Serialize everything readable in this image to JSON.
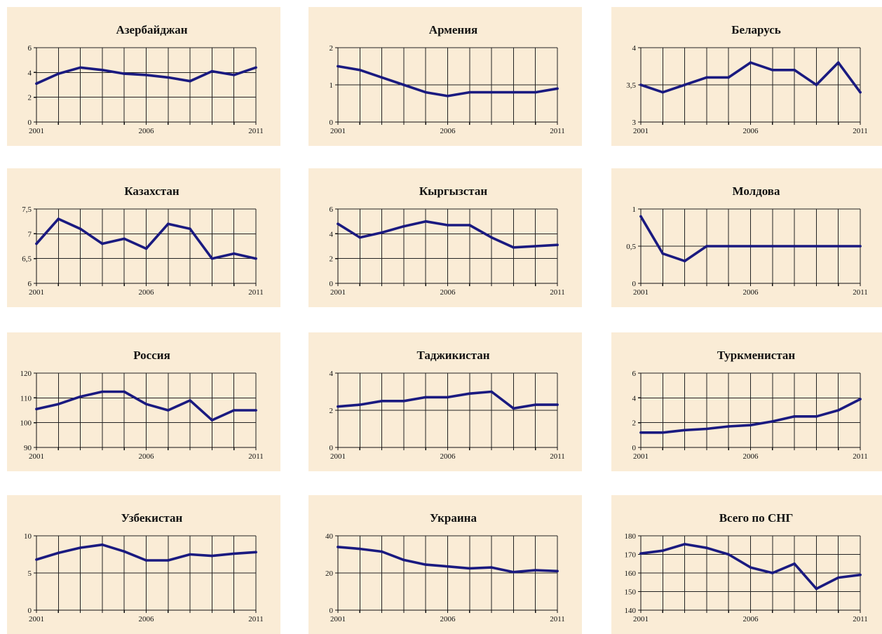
{
  "chart_data": [
    {
      "type": "line",
      "title": "Азербайджан",
      "x": [
        2001,
        2002,
        2003,
        2004,
        2005,
        2006,
        2007,
        2008,
        2009,
        2010,
        2011
      ],
      "xticks": [
        "2001",
        "2006",
        "2011"
      ],
      "ylim": [
        0,
        6
      ],
      "yticks": [
        "0",
        "2",
        "4",
        "6"
      ],
      "values": [
        3.1,
        3.9,
        4.4,
        4.2,
        3.9,
        3.8,
        3.6,
        3.3,
        4.1,
        3.8,
        4.4
      ]
    },
    {
      "type": "line",
      "title": "Армения",
      "x": [
        2001,
        2002,
        2003,
        2004,
        2005,
        2006,
        2007,
        2008,
        2009,
        2010,
        2011
      ],
      "xticks": [
        "2001",
        "2006",
        "2011"
      ],
      "ylim": [
        0,
        2
      ],
      "yticks": [
        "0",
        "1",
        "2"
      ],
      "values": [
        1.5,
        1.4,
        1.2,
        1.0,
        0.8,
        0.7,
        0.8,
        0.8,
        0.8,
        0.8,
        0.9
      ]
    },
    {
      "type": "line",
      "title": "Беларусь",
      "x": [
        2001,
        2002,
        2003,
        2004,
        2005,
        2006,
        2007,
        2008,
        2009,
        2010,
        2011
      ],
      "xticks": [
        "2001",
        "2006",
        "2011"
      ],
      "ylim": [
        3,
        4
      ],
      "yticks": [
        "3",
        "3,5",
        "4"
      ],
      "values": [
        3.5,
        3.4,
        3.5,
        3.6,
        3.6,
        3.8,
        3.7,
        3.7,
        3.5,
        3.8,
        3.4
      ]
    },
    {
      "type": "line",
      "title": "Казахстан",
      "x": [
        2001,
        2002,
        2003,
        2004,
        2005,
        2006,
        2007,
        2008,
        2009,
        2010,
        2011
      ],
      "xticks": [
        "2001",
        "2006",
        "2011"
      ],
      "ylim": [
        6,
        7.5
      ],
      "yticks": [
        "6",
        "6,5",
        "7",
        "7,5"
      ],
      "values": [
        6.8,
        7.3,
        7.1,
        6.8,
        6.9,
        6.7,
        7.2,
        7.1,
        6.5,
        6.6,
        6.5
      ]
    },
    {
      "type": "line",
      "title": "Кыргызстан",
      "x": [
        2001,
        2002,
        2003,
        2004,
        2005,
        2006,
        2007,
        2008,
        2009,
        2010,
        2011
      ],
      "xticks": [
        "2001",
        "2006",
        "2011"
      ],
      "ylim": [
        0,
        6
      ],
      "yticks": [
        "0",
        "2",
        "4",
        "6"
      ],
      "values": [
        4.8,
        3.7,
        4.1,
        4.6,
        5.0,
        4.7,
        4.7,
        3.7,
        2.9,
        3.0,
        3.1
      ]
    },
    {
      "type": "line",
      "title": "Молдова",
      "x": [
        2001,
        2002,
        2003,
        2004,
        2005,
        2006,
        2007,
        2008,
        2009,
        2010,
        2011
      ],
      "xticks": [
        "2001",
        "2006",
        "2011"
      ],
      "ylim": [
        0,
        1
      ],
      "yticks": [
        "0",
        "0,5",
        "1"
      ],
      "values": [
        0.9,
        0.4,
        0.3,
        0.5,
        0.5,
        0.5,
        0.5,
        0.5,
        0.5,
        0.5,
        0.5
      ]
    },
    {
      "type": "line",
      "title": "Россия",
      "x": [
        2001,
        2002,
        2003,
        2004,
        2005,
        2006,
        2007,
        2008,
        2009,
        2010,
        2011
      ],
      "xticks": [
        "2001",
        "2006",
        "2011"
      ],
      "ylim": [
        90,
        120
      ],
      "yticks": [
        "90",
        "100",
        "110",
        "120"
      ],
      "values": [
        105.5,
        107.5,
        110.5,
        112.5,
        112.5,
        107.5,
        105.0,
        109.0,
        101.0,
        105.0,
        105.0
      ]
    },
    {
      "type": "line",
      "title": "Таджикистан",
      "x": [
        2001,
        2002,
        2003,
        2004,
        2005,
        2006,
        2007,
        2008,
        2009,
        2010,
        2011
      ],
      "xticks": [
        "2001",
        "2006",
        "2011"
      ],
      "ylim": [
        0,
        4
      ],
      "yticks": [
        "0",
        "2",
        "4"
      ],
      "values": [
        2.2,
        2.3,
        2.5,
        2.5,
        2.7,
        2.7,
        2.9,
        3.0,
        2.1,
        2.3,
        2.3
      ]
    },
    {
      "type": "line",
      "title": "Туркменистан",
      "x": [
        2001,
        2002,
        2003,
        2004,
        2005,
        2006,
        2007,
        2008,
        2009,
        2010,
        2011
      ],
      "xticks": [
        "2001",
        "2006",
        "2011"
      ],
      "ylim": [
        0,
        6
      ],
      "yticks": [
        "0",
        "2",
        "4",
        "6"
      ],
      "values": [
        1.2,
        1.2,
        1.4,
        1.5,
        1.7,
        1.8,
        2.1,
        2.5,
        2.5,
        3.0,
        3.9
      ]
    },
    {
      "type": "line",
      "title": "Узбекистан",
      "x": [
        2001,
        2002,
        2003,
        2004,
        2005,
        2006,
        2007,
        2008,
        2009,
        2010,
        2011
      ],
      "xticks": [
        "2001",
        "2006",
        "2011"
      ],
      "ylim": [
        0,
        10
      ],
      "yticks": [
        "0",
        "5",
        "10"
      ],
      "values": [
        6.8,
        7.7,
        8.4,
        8.8,
        7.9,
        6.7,
        6.7,
        7.5,
        7.3,
        7.6,
        7.8
      ]
    },
    {
      "type": "line",
      "title": "Украина",
      "x": [
        2001,
        2002,
        2003,
        2004,
        2005,
        2006,
        2007,
        2008,
        2009,
        2010,
        2011
      ],
      "xticks": [
        "2001",
        "2006",
        "2011"
      ],
      "ylim": [
        0,
        40
      ],
      "yticks": [
        "0",
        "20",
        "40"
      ],
      "values": [
        34,
        33,
        31.5,
        27,
        24.5,
        23.5,
        22.5,
        23,
        20.5,
        21.5,
        21
      ]
    },
    {
      "type": "line",
      "title": "Всего по СНГ",
      "x": [
        2001,
        2002,
        2003,
        2004,
        2005,
        2006,
        2007,
        2008,
        2009,
        2010,
        2011
      ],
      "xticks": [
        "2001",
        "2006",
        "2011"
      ],
      "ylim": [
        140,
        180
      ],
      "yticks": [
        "140",
        "150",
        "160",
        "170",
        "180"
      ],
      "values": [
        170.5,
        172,
        175.5,
        173.5,
        170,
        163,
        160,
        165,
        151.5,
        157.5,
        159
      ]
    }
  ],
  "colors": {
    "panel_bg": "#faecd6",
    "line": "#1a1a80",
    "grid": "#222222"
  }
}
